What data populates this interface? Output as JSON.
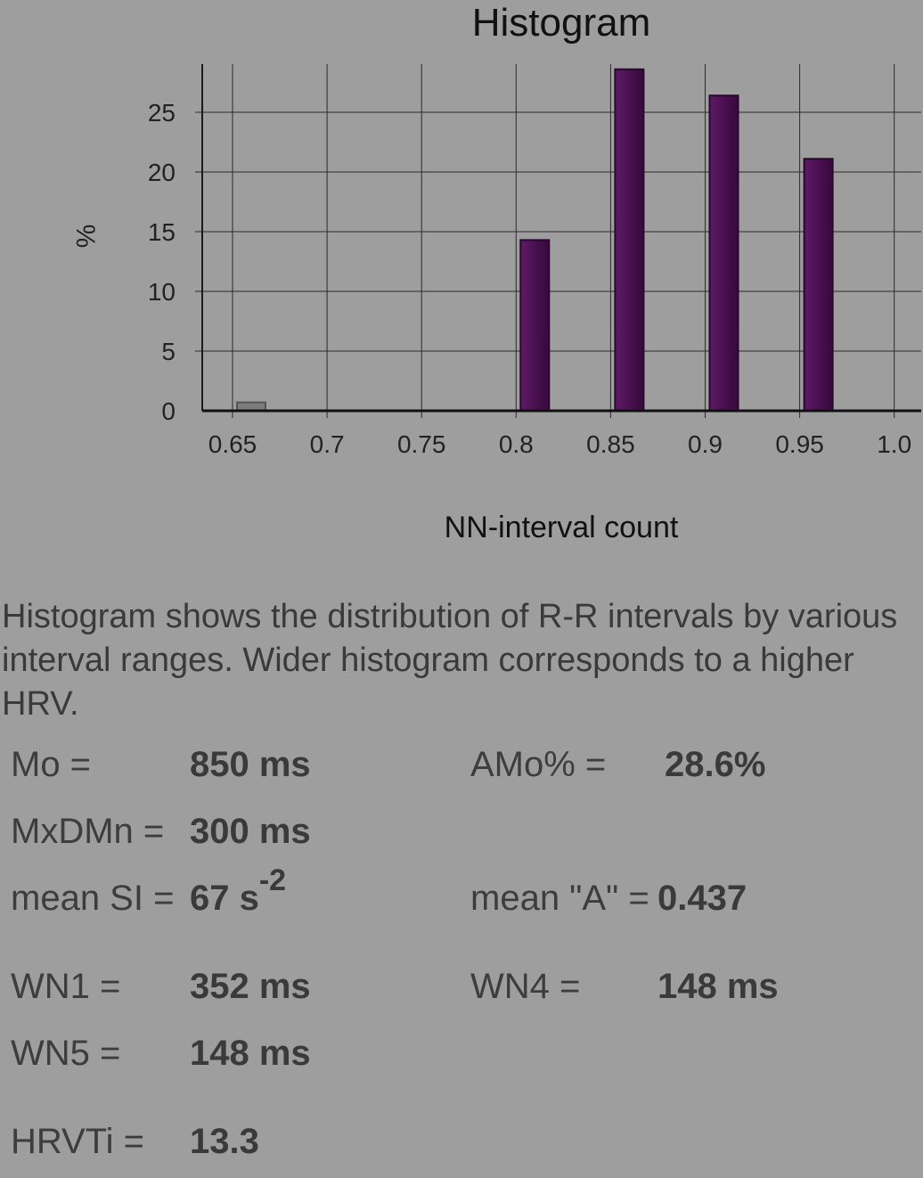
{
  "chart_data": {
    "type": "bar",
    "title": "Histogram",
    "xlabel": "NN-interval count",
    "ylabel": "%",
    "x_ticks": [
      "0.65",
      "0.7",
      "0.75",
      "0.8",
      "0.85",
      "0.9",
      "0.95",
      "1.0"
    ],
    "y_ticks": [
      "0",
      "5",
      "10",
      "15",
      "20",
      "25"
    ],
    "xlim": [
      0.65,
      1.0
    ],
    "ylim": [
      0,
      28.6
    ],
    "grid": true,
    "series": [
      {
        "x": [
          0.65,
          0.8,
          0.85,
          0.9,
          0.95
        ],
        "values": [
          0.7,
          14.3,
          28.6,
          26.4,
          21.1
        ],
        "colors": [
          "#7a7a7a",
          "#4a1050",
          "#4a1050",
          "#4a1050",
          "#4a1050"
        ]
      }
    ]
  },
  "description": "Histogram shows the distribution of R-R intervals by various interval ranges. Wider histogram corresponds to a higher HRV.",
  "stats": {
    "mo_label": "Mo =",
    "mo_value": "850 ms",
    "amo_label": "AMo% =",
    "amo_value": "28.6%",
    "mxdmn_label": "MxDMn =",
    "mxdmn_value": "300 ms",
    "si_label": "mean SI =",
    "si_value": "67 s",
    "si_exp": "-2",
    "a_label": "mean \"A\" =",
    "a_value": "0.437",
    "wn1_label": "WN1 =",
    "wn1_value": "352 ms",
    "wn4_label": "WN4 =",
    "wn4_value": "148 ms",
    "wn5_label": "WN5 =",
    "wn5_value": "148 ms",
    "hrvti_label": "HRVTi =",
    "hrvti_value": "13.3"
  }
}
